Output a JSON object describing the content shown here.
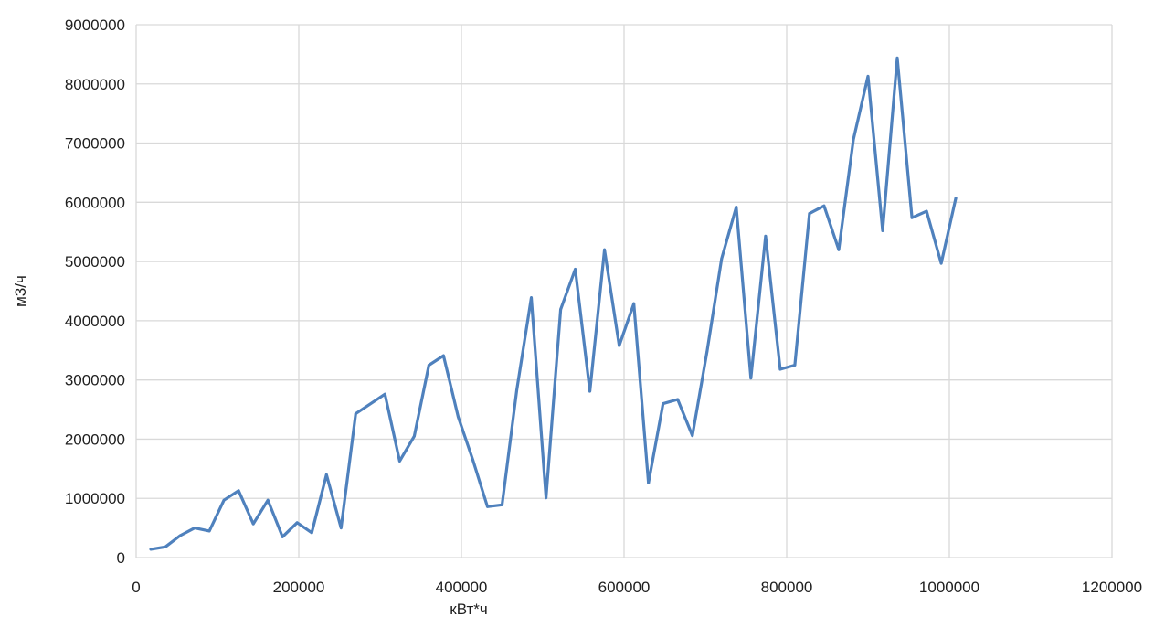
{
  "chart_data": {
    "type": "line",
    "title": "",
    "xlabel": "кВт*ч",
    "ylabel": "м3/ч",
    "xlim": [
      0,
      1200000
    ],
    "ylim": [
      0,
      9000000
    ],
    "x_ticks": [
      "0",
      "200000",
      "400000",
      "600000",
      "800000",
      "1000000",
      "1200000"
    ],
    "y_ticks": [
      "0",
      "1000000",
      "2000000",
      "3000000",
      "4000000",
      "5000000",
      "6000000",
      "7000000",
      "8000000",
      "9000000"
    ],
    "x_tick_values": [
      0,
      200000,
      400000,
      600000,
      800000,
      1000000,
      1200000
    ],
    "y_tick_values": [
      0,
      1000000,
      2000000,
      3000000,
      4000000,
      5000000,
      6000000,
      7000000,
      8000000,
      9000000
    ],
    "grid": true,
    "legend": "none",
    "series_color": "#4f81bd",
    "series": [
      {
        "x": [
          18000,
          36000,
          54000,
          72000,
          90000,
          108000,
          126000,
          144000,
          162000,
          180000,
          198000,
          216000,
          234000,
          252000,
          270000,
          306000,
          324000,
          342000,
          360000,
          378000,
          396000,
          414000,
          432000,
          450000,
          468000,
          486000,
          504000,
          522000,
          540000,
          558000,
          576000,
          594000,
          612000,
          630000,
          648000,
          666000,
          684000,
          702000,
          720000,
          738000,
          756000,
          774000,
          792000,
          810000,
          828000,
          846000,
          864000,
          882000,
          900000,
          918000,
          936000,
          954000,
          972000,
          990000,
          1008000
        ],
        "values": [
          140000,
          180000,
          370000,
          500000,
          450000,
          970000,
          1130000,
          570000,
          970000,
          350000,
          590000,
          420000,
          1400000,
          500000,
          2430000,
          2760000,
          1630000,
          2050000,
          3250000,
          3410000,
          2380000,
          1650000,
          860000,
          890000,
          2820000,
          4390000,
          1010000,
          4190000,
          4870000,
          2810000,
          5200000,
          3580000,
          4290000,
          1260000,
          2600000,
          2670000,
          2060000,
          3480000,
          5050000,
          5920000,
          3030000,
          5430000,
          3180000,
          3250000,
          5810000,
          5940000,
          5200000,
          7060000,
          8130000,
          5520000,
          8440000,
          5740000,
          5850000,
          4970000,
          6070000
        ]
      }
    ]
  }
}
